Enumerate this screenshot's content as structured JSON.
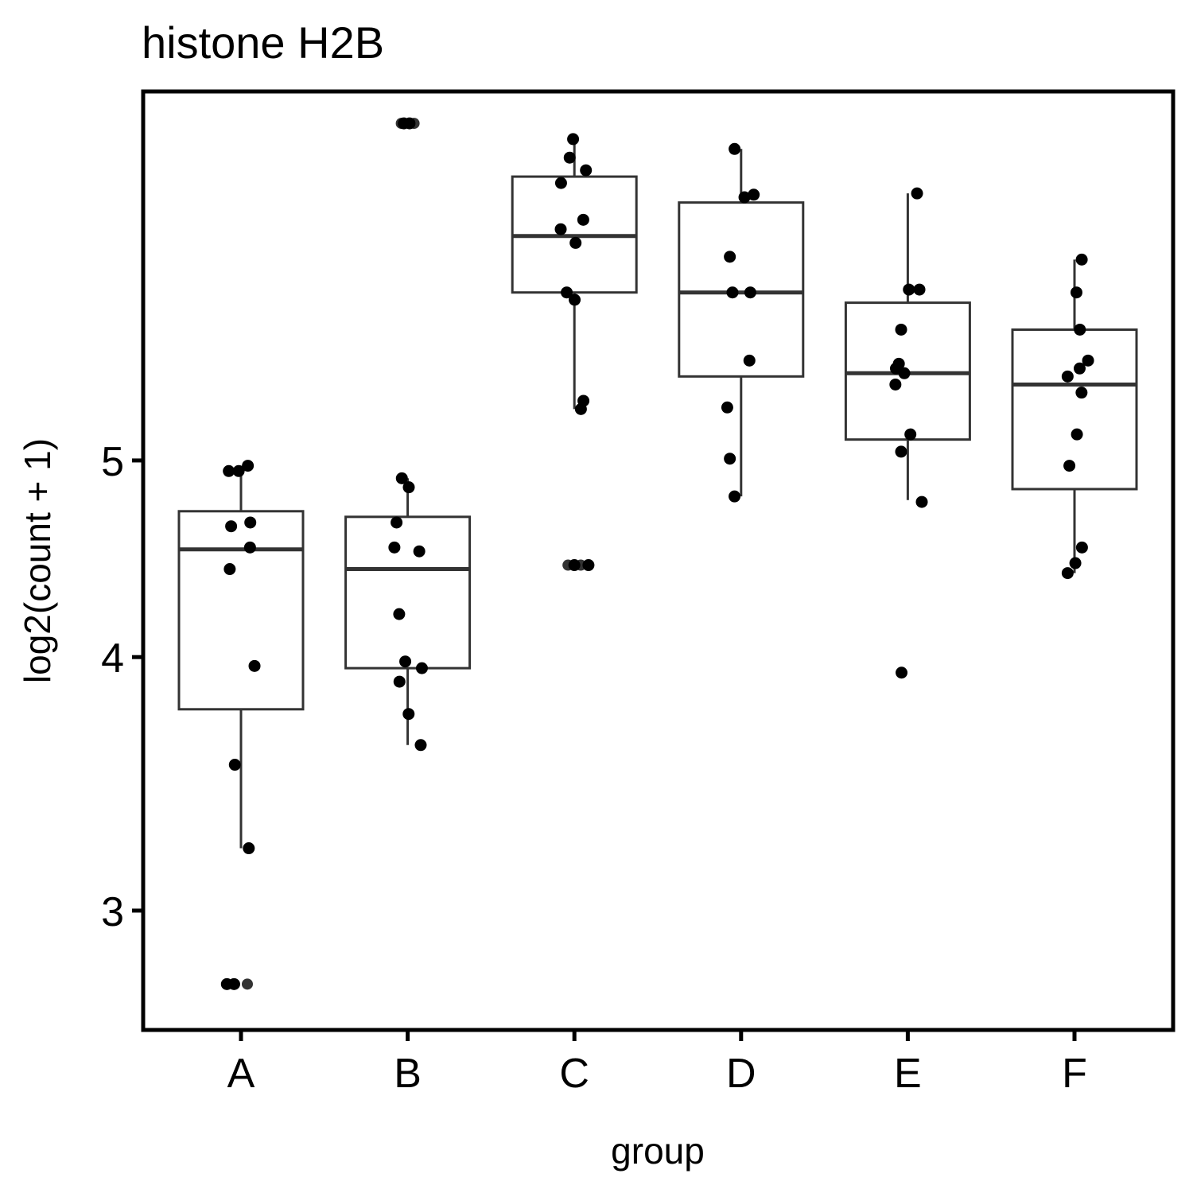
{
  "chart_data": {
    "type": "box",
    "title": "histone H2B",
    "xlabel": "group",
    "ylabel": "log2(count + 1)",
    "y_scale": "log",
    "ylim": [
      2.62,
      7.6
    ],
    "yticks": [
      3,
      4,
      5
    ],
    "grid": false,
    "legend": "none",
    "categories": [
      "A",
      "B",
      "C",
      "D",
      "E",
      "F"
    ],
    "boxes": [
      {
        "category": "A",
        "lower_whisker": 3.22,
        "q1": 3.77,
        "median": 4.52,
        "q3": 4.72,
        "upper_whisker": 4.97,
        "outliers": [
          2.76,
          2.76
        ]
      },
      {
        "category": "B",
        "lower_whisker": 3.62,
        "q1": 3.95,
        "median": 4.42,
        "q3": 4.69,
        "upper_whisker": 4.9,
        "outliers": [
          7.33,
          7.33
        ]
      },
      {
        "category": "C",
        "lower_whisker": 5.3,
        "q1": 6.05,
        "median": 6.45,
        "q3": 6.9,
        "upper_whisker": 7.2,
        "outliers": [
          4.44,
          4.44
        ]
      },
      {
        "category": "D",
        "lower_whisker": 4.8,
        "q1": 5.5,
        "median": 6.05,
        "q3": 6.7,
        "upper_whisker": 7.12,
        "outliers": []
      },
      {
        "category": "E",
        "lower_whisker": 4.78,
        "q1": 5.12,
        "median": 5.52,
        "q3": 5.98,
        "upper_whisker": 6.77,
        "outliers": [
          3.93
        ]
      },
      {
        "category": "F",
        "lower_whisker": 4.4,
        "q1": 4.84,
        "median": 5.45,
        "q3": 5.8,
        "upper_whisker": 6.28,
        "outliers": []
      }
    ],
    "points": [
      {
        "category": "A",
        "values": [
          4.97,
          4.94,
          4.94,
          4.66,
          4.64,
          4.53,
          4.42,
          3.96,
          3.54,
          3.22,
          2.76,
          2.76
        ]
      },
      {
        "category": "B",
        "values": [
          7.33,
          7.33,
          4.9,
          4.85,
          4.66,
          4.53,
          4.51,
          4.2,
          3.98,
          3.95,
          3.89,
          3.75,
          3.62
        ]
      },
      {
        "category": "C",
        "values": [
          7.2,
          7.05,
          6.95,
          6.85,
          6.57,
          6.5,
          6.4,
          6.05,
          6.0,
          5.35,
          5.3,
          4.44,
          4.44
        ]
      },
      {
        "category": "D",
        "values": [
          7.12,
          6.76,
          6.74,
          6.3,
          6.05,
          6.05,
          5.6,
          5.31,
          5.01,
          4.8
        ]
      },
      {
        "category": "E",
        "values": [
          6.77,
          6.07,
          6.07,
          5.8,
          5.58,
          5.55,
          5.52,
          5.45,
          5.15,
          5.05,
          4.77,
          3.93
        ]
      },
      {
        "category": "F",
        "values": [
          6.28,
          6.05,
          5.8,
          5.6,
          5.55,
          5.5,
          5.4,
          5.15,
          4.97,
          4.53,
          4.45,
          4.4
        ]
      }
    ]
  }
}
